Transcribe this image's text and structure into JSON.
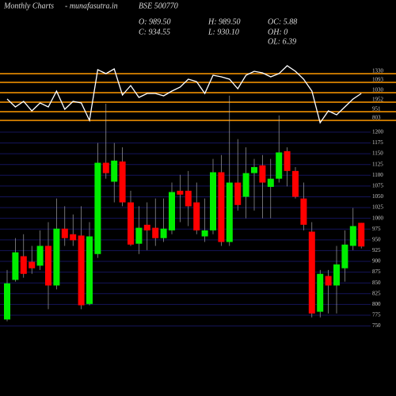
{
  "header": {
    "left": "Monthly Charts",
    "site": "- munafasutra.in",
    "symbol": "BSE 500770",
    "stats": [
      [
        "O: 989.50",
        "H: 989.50",
        "OC: 5.88"
      ],
      [
        "C: 934.55",
        "L: 930.10",
        "OH: 0"
      ],
      [
        "",
        "",
        "OL: 6.39"
      ]
    ]
  },
  "chart_data": {
    "type": "candlestick",
    "open": [
      765,
      857,
      912,
      899,
      890,
      936,
      844,
      976,
      963,
      960,
      801,
      917,
      1129,
      1085,
      1132,
      1037,
      941,
      985,
      978,
      954,
      972,
      1064,
      1064,
      1037,
      958,
      972,
      1107,
      945,
      1083,
      1050,
      1105,
      1123,
      1073,
      1092,
      1156,
      1110,
      1046,
      969,
      783,
      866,
      844,
      884,
      936,
      989.5
    ],
    "high": [
      880,
      954,
      963,
      936,
      972,
      991,
      1046,
      1028,
      1009,
      1028,
      991,
      1175,
      1266,
      1175,
      1165,
      1064,
      1028,
      1037,
      1046,
      1046,
      1083,
      1101,
      1110,
      1083,
      1046,
      1138,
      1147,
      1285,
      1184,
      1165,
      1138,
      1147,
      1138,
      1239,
      1165,
      1119,
      1083,
      991,
      880,
      880,
      936,
      972,
      1024,
      989.5
    ],
    "low": [
      761,
      853,
      862,
      871,
      880,
      789,
      835,
      936,
      936,
      789,
      798,
      908,
      1092,
      1037,
      1028,
      936,
      917,
      926,
      936,
      945,
      963,
      991,
      982,
      963,
      945,
      963,
      936,
      936,
      1018,
      1000,
      1018,
      1000,
      1000,
      1083,
      1074,
      1046,
      972,
      770,
      770,
      779,
      779,
      853,
      926,
      930.1
    ],
    "close": [
      849,
      921,
      871,
      884,
      936,
      844,
      976,
      954,
      949,
      798,
      958,
      1129,
      1105,
      1134,
      1037,
      939,
      978,
      972,
      954,
      976,
      1061,
      1055,
      1028,
      972,
      972,
      1107,
      945,
      1083,
      1031,
      1105,
      1119,
      1083,
      1092,
      1153,
      1110,
      1050,
      985,
      779,
      871,
      844,
      893,
      939,
      982,
      934.55
    ],
    "up_color": "#00ee00",
    "down_color": "#ff0000",
    "ylim": [
      740,
      1290
    ],
    "yticks": [
      750,
      775,
      800,
      825,
      850,
      875,
      900,
      925,
      950,
      975,
      1000,
      1025,
      1050,
      1075,
      1100,
      1125,
      1150,
      1175,
      1200
    ],
    "grid": true,
    "grid_color": "#14145a",
    "indicator": {
      "color": "#ffffff",
      "level_color": "#ff9900",
      "ylim": [
        0,
        100
      ],
      "values": [
        43.75,
        31.25,
        40,
        25,
        37.5,
        31.25,
        56.25,
        27.5,
        40,
        37.5,
        10,
        90,
        83.75,
        91.25,
        50,
        65,
        46.25,
        52.5,
        52.5,
        48.75,
        56.25,
        62.5,
        75,
        71.25,
        52.5,
        81.25,
        78.75,
        75,
        60,
        81.25,
        87.5,
        85,
        78.75,
        83.75,
        96.25,
        87.5,
        75,
        56.25,
        6.25,
        25,
        18.75,
        31.25,
        43.75,
        52.5
      ],
      "levels": [
        {
          "value": 83.75,
          "label": "1330"
        },
        {
          "value": 70,
          "label": "1093"
        },
        {
          "value": 53.75,
          "label": "1030"
        },
        {
          "value": 38.75,
          "label": "1952"
        },
        {
          "value": 23.75,
          "label": "951"
        },
        {
          "value": 10,
          "label": "803"
        }
      ]
    }
  }
}
